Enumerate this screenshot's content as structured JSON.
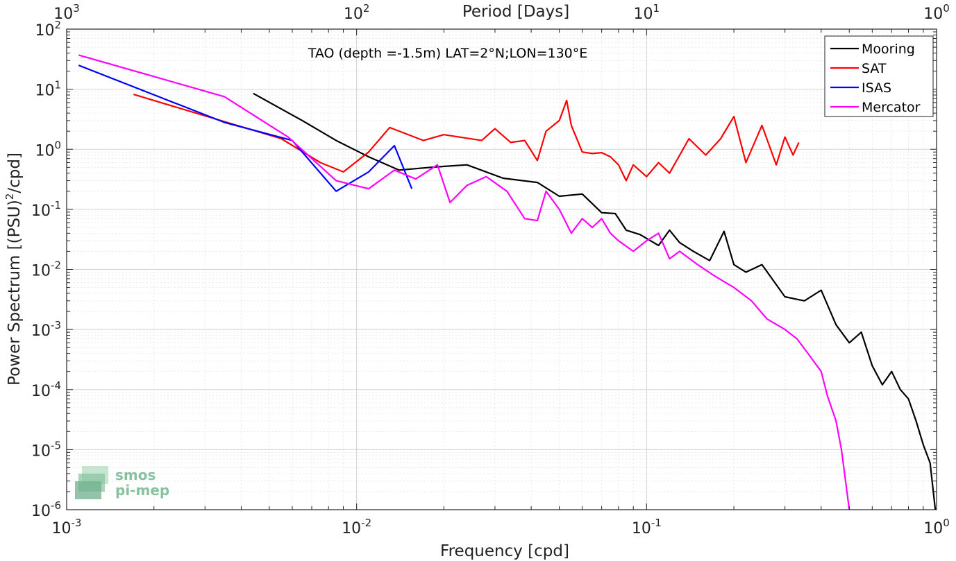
{
  "chart_data": {
    "type": "line",
    "title": "TAO (depth =-1.5m) LAT=2°N;LON=130°E",
    "xlabel": "Frequency [cpd]",
    "ylabel_main": "Power Spectrum [(PSU)",
    "ylabel_sup": "2",
    "ylabel_tail": "/cpd]",
    "top_xlabel": "Period [Days]",
    "x_scale": "log",
    "y_scale": "log",
    "xlim": [
      0.001,
      1
    ],
    "ylim": [
      1e-06,
      100
    ],
    "grid": true,
    "legend_position": "top-right",
    "x_ticks": [
      {
        "value": 0.001,
        "base": "10",
        "exp": "-3"
      },
      {
        "value": 0.01,
        "base": "10",
        "exp": "-2"
      },
      {
        "value": 0.1,
        "base": "10",
        "exp": "-1"
      },
      {
        "value": 1,
        "base": "10",
        "exp": "0"
      }
    ],
    "top_ticks": [
      {
        "value": 0.001,
        "base": "10",
        "exp": "3"
      },
      {
        "value": 0.01,
        "base": "10",
        "exp": "2"
      },
      {
        "value": 0.1,
        "base": "10",
        "exp": "1"
      },
      {
        "value": 1,
        "base": "10",
        "exp": "0"
      }
    ],
    "y_ticks": [
      {
        "value": 100,
        "base": "10",
        "exp": "2"
      },
      {
        "value": 10,
        "base": "10",
        "exp": "1"
      },
      {
        "value": 1,
        "base": "10",
        "exp": "0"
      },
      {
        "value": 0.1,
        "base": "10",
        "exp": "-1"
      },
      {
        "value": 0.01,
        "base": "10",
        "exp": "-2"
      },
      {
        "value": 0.001,
        "base": "10",
        "exp": "-3"
      },
      {
        "value": 0.0001,
        "base": "10",
        "exp": "-4"
      },
      {
        "value": 1e-05,
        "base": "10",
        "exp": "-5"
      },
      {
        "value": 1e-06,
        "base": "10",
        "exp": "-6"
      }
    ],
    "series": [
      {
        "name": "Mooring",
        "color": "#000000",
        "x": [
          0.0044,
          0.0065,
          0.0085,
          0.011,
          0.014,
          0.018,
          0.024,
          0.032,
          0.042,
          0.05,
          0.06,
          0.07,
          0.078,
          0.085,
          0.095,
          0.11,
          0.12,
          0.13,
          0.145,
          0.165,
          0.185,
          0.2,
          0.22,
          0.25,
          0.3,
          0.35,
          0.4,
          0.45,
          0.5,
          0.55,
          0.6,
          0.65,
          0.7,
          0.75,
          0.8,
          0.85,
          0.9,
          0.95,
          0.99
        ],
        "y": [
          8.5,
          3.0,
          1.4,
          0.75,
          0.45,
          0.5,
          0.55,
          0.33,
          0.28,
          0.165,
          0.18,
          0.088,
          0.085,
          0.045,
          0.038,
          0.025,
          0.045,
          0.028,
          0.02,
          0.014,
          0.043,
          0.012,
          0.009,
          0.012,
          0.0035,
          0.003,
          0.0045,
          0.0012,
          0.0006,
          0.0009,
          0.00025,
          0.00012,
          0.0002,
          0.0001,
          7e-05,
          3e-05,
          1.2e-05,
          6e-06,
          1e-06
        ]
      },
      {
        "name": "SAT",
        "color": "#ff0000",
        "x": [
          0.0017,
          0.0055,
          0.0075,
          0.009,
          0.011,
          0.013,
          0.017,
          0.02,
          0.027,
          0.03,
          0.034,
          0.038,
          0.042,
          0.045,
          0.05,
          0.053,
          0.055,
          0.06,
          0.065,
          0.07,
          0.075,
          0.08,
          0.085,
          0.09,
          0.1,
          0.11,
          0.12,
          0.14,
          0.16,
          0.18,
          0.2,
          0.22,
          0.25,
          0.28,
          0.3,
          0.32,
          0.335
        ],
        "y": [
          8.2,
          1.5,
          0.6,
          0.42,
          0.9,
          2.3,
          1.4,
          1.75,
          1.4,
          2.2,
          1.3,
          1.4,
          0.65,
          2.0,
          3.0,
          6.5,
          2.5,
          0.9,
          0.85,
          0.88,
          0.75,
          0.55,
          0.3,
          0.55,
          0.35,
          0.6,
          0.4,
          1.5,
          0.8,
          1.5,
          3.5,
          0.6,
          2.5,
          0.55,
          1.6,
          0.8,
          1.3
        ]
      },
      {
        "name": "ISAS",
        "color": "#0000ff",
        "x": [
          0.0011,
          0.0035,
          0.006,
          0.0085,
          0.011,
          0.0135,
          0.0155
        ],
        "y": [
          25,
          2.8,
          1.4,
          0.2,
          0.42,
          1.15,
          0.22
        ]
      },
      {
        "name": "Mercator",
        "color": "#ff00ff",
        "x": [
          0.0011,
          0.0035,
          0.0058,
          0.0085,
          0.011,
          0.0135,
          0.016,
          0.019,
          0.021,
          0.024,
          0.028,
          0.033,
          0.038,
          0.042,
          0.045,
          0.05,
          0.055,
          0.06,
          0.065,
          0.07,
          0.075,
          0.08,
          0.09,
          0.1,
          0.11,
          0.12,
          0.13,
          0.15,
          0.17,
          0.2,
          0.23,
          0.26,
          0.3,
          0.33,
          0.36,
          0.4,
          0.42,
          0.45,
          0.47,
          0.5
        ],
        "y": [
          37,
          7.5,
          1.6,
          0.3,
          0.22,
          0.45,
          0.32,
          0.55,
          0.13,
          0.25,
          0.35,
          0.2,
          0.07,
          0.065,
          0.2,
          0.1,
          0.04,
          0.07,
          0.05,
          0.07,
          0.04,
          0.03,
          0.02,
          0.03,
          0.04,
          0.015,
          0.02,
          0.012,
          0.008,
          0.005,
          0.003,
          0.0015,
          0.001,
          0.0007,
          0.0004,
          0.0002,
          8e-05,
          3e-05,
          1e-05,
          1e-06
        ]
      }
    ]
  },
  "logo": {
    "line1": "smos",
    "line2": "pi-mep",
    "color": "#86c2a0"
  }
}
